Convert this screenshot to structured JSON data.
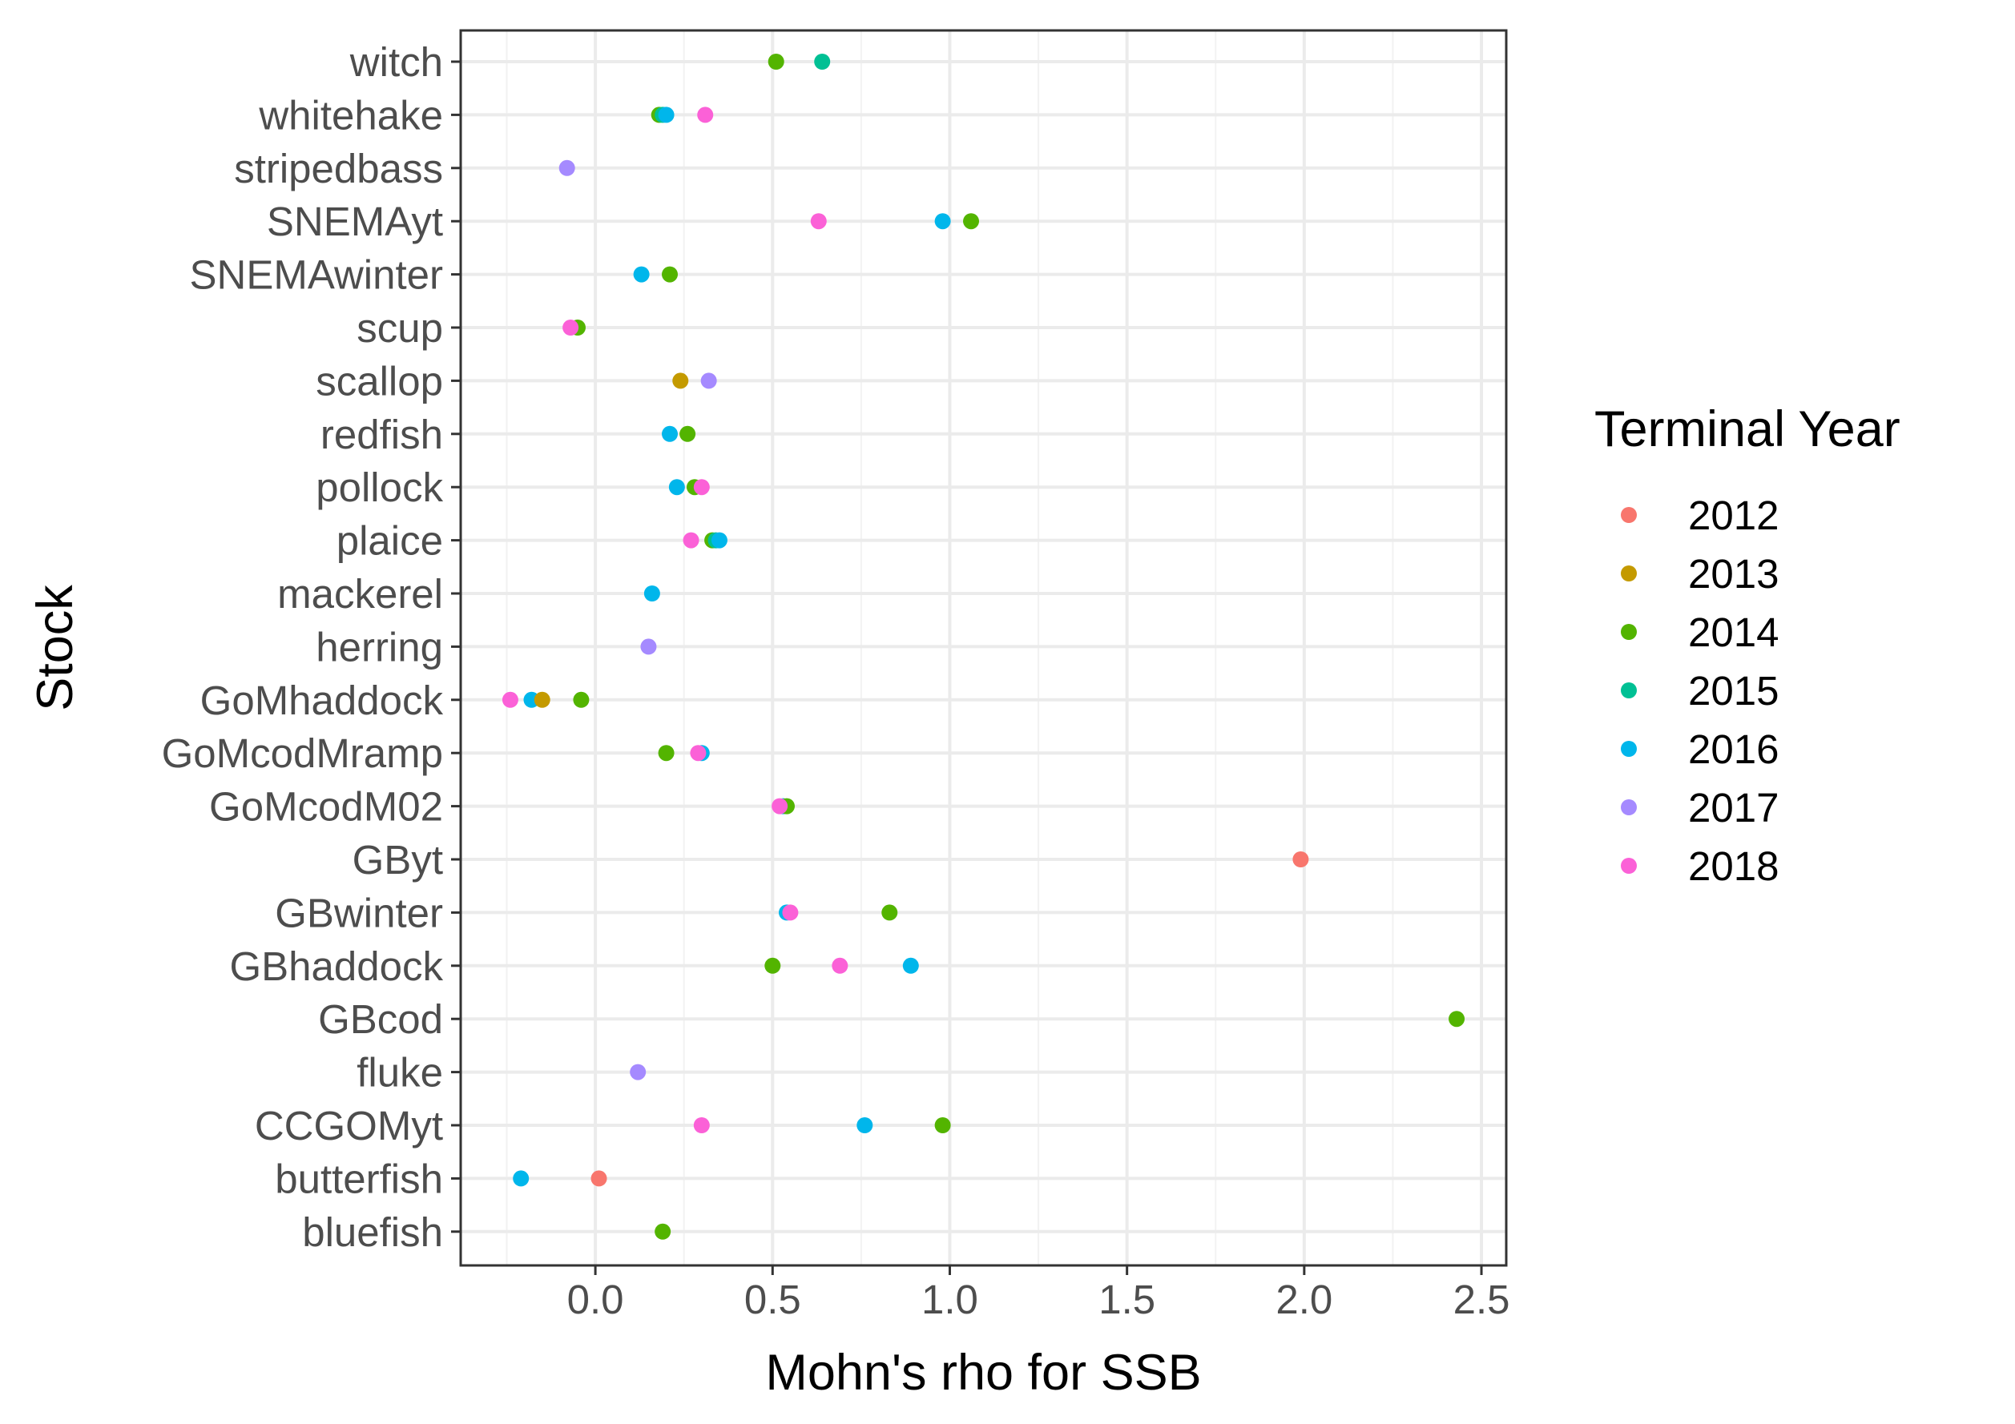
{
  "chart_data": {
    "type": "scatter",
    "xlabel": "Mohn's rho for SSB",
    "ylabel": "Stock",
    "xlim": [
      -0.38,
      2.57
    ],
    "xticks": [
      "0.0",
      "0.5",
      "1.0",
      "1.5",
      "2.0",
      "2.5"
    ],
    "grid": true,
    "legend": {
      "title": "Terminal Year",
      "position": "right",
      "entries": [
        "2012",
        "2013",
        "2014",
        "2015",
        "2016",
        "2017",
        "2018"
      ]
    },
    "colors": {
      "2012": "#F8766D",
      "2013": "#C49A00",
      "2014": "#53B400",
      "2015": "#00C094",
      "2016": "#00B6EB",
      "2017": "#A58AFF",
      "2018": "#FB61D7"
    },
    "categories": [
      "witch",
      "whitehake",
      "stripedbass",
      "SNEMAyt",
      "SNEMAwinter",
      "scup",
      "scallop",
      "redfish",
      "pollock",
      "plaice",
      "mackerel",
      "herring",
      "GoMhaddock",
      "GoMcodMramp",
      "GoMcodM02",
      "GByt",
      "GBwinter",
      "GBhaddock",
      "GBcod",
      "fluke",
      "CCGOMyt",
      "butterfish",
      "bluefish"
    ],
    "points": [
      {
        "stock": "witch",
        "year": "2014",
        "x": 0.51
      },
      {
        "stock": "witch",
        "year": "2015",
        "x": 0.64
      },
      {
        "stock": "whitehake",
        "year": "2014",
        "x": 0.18
      },
      {
        "stock": "whitehake",
        "year": "2015",
        "x": 0.19
      },
      {
        "stock": "whitehake",
        "year": "2016",
        "x": 0.2
      },
      {
        "stock": "whitehake",
        "year": "2018",
        "x": 0.31
      },
      {
        "stock": "stripedbass",
        "year": "2017",
        "x": -0.08
      },
      {
        "stock": "SNEMAyt",
        "year": "2018",
        "x": 0.63
      },
      {
        "stock": "SNEMAyt",
        "year": "2016",
        "x": 0.98
      },
      {
        "stock": "SNEMAyt",
        "year": "2014",
        "x": 1.06
      },
      {
        "stock": "SNEMAwinter",
        "year": "2016",
        "x": 0.13
      },
      {
        "stock": "SNEMAwinter",
        "year": "2014",
        "x": 0.21
      },
      {
        "stock": "scup",
        "year": "2014",
        "x": -0.05
      },
      {
        "stock": "scup",
        "year": "2018",
        "x": -0.07
      },
      {
        "stock": "scallop",
        "year": "2013",
        "x": 0.24
      },
      {
        "stock": "scallop",
        "year": "2017",
        "x": 0.32
      },
      {
        "stock": "redfish",
        "year": "2016",
        "x": 0.21
      },
      {
        "stock": "redfish",
        "year": "2014",
        "x": 0.26
      },
      {
        "stock": "pollock",
        "year": "2016",
        "x": 0.23
      },
      {
        "stock": "pollock",
        "year": "2014",
        "x": 0.28
      },
      {
        "stock": "pollock",
        "year": "2018",
        "x": 0.3
      },
      {
        "stock": "plaice",
        "year": "2018",
        "x": 0.27
      },
      {
        "stock": "plaice",
        "year": "2014",
        "x": 0.33
      },
      {
        "stock": "plaice",
        "year": "2015",
        "x": 0.34
      },
      {
        "stock": "plaice",
        "year": "2016",
        "x": 0.35
      },
      {
        "stock": "mackerel",
        "year": "2016",
        "x": 0.16
      },
      {
        "stock": "herring",
        "year": "2017",
        "x": 0.15
      },
      {
        "stock": "GoMhaddock",
        "year": "2018",
        "x": -0.24
      },
      {
        "stock": "GoMhaddock",
        "year": "2016",
        "x": -0.18
      },
      {
        "stock": "GoMhaddock",
        "year": "2013",
        "x": -0.15
      },
      {
        "stock": "GoMhaddock",
        "year": "2014",
        "x": -0.04
      },
      {
        "stock": "GoMcodMramp",
        "year": "2014",
        "x": 0.2
      },
      {
        "stock": "GoMcodMramp",
        "year": "2016",
        "x": 0.3
      },
      {
        "stock": "GoMcodMramp",
        "year": "2018",
        "x": 0.29
      },
      {
        "stock": "GoMcodM02",
        "year": "2016",
        "x": 0.53
      },
      {
        "stock": "GoMcodM02",
        "year": "2014",
        "x": 0.54
      },
      {
        "stock": "GoMcodM02",
        "year": "2018",
        "x": 0.52
      },
      {
        "stock": "GByt",
        "year": "2012",
        "x": 1.99
      },
      {
        "stock": "GBwinter",
        "year": "2016",
        "x": 0.54
      },
      {
        "stock": "GBwinter",
        "year": "2018",
        "x": 0.55
      },
      {
        "stock": "GBwinter",
        "year": "2014",
        "x": 0.83
      },
      {
        "stock": "GBhaddock",
        "year": "2014",
        "x": 0.5
      },
      {
        "stock": "GBhaddock",
        "year": "2018",
        "x": 0.69
      },
      {
        "stock": "GBhaddock",
        "year": "2016",
        "x": 0.89
      },
      {
        "stock": "GBcod",
        "year": "2014",
        "x": 2.43
      },
      {
        "stock": "fluke",
        "year": "2017",
        "x": 0.12
      },
      {
        "stock": "CCGOMyt",
        "year": "2018",
        "x": 0.3
      },
      {
        "stock": "CCGOMyt",
        "year": "2016",
        "x": 0.76
      },
      {
        "stock": "CCGOMyt",
        "year": "2014",
        "x": 0.98
      },
      {
        "stock": "butterfish",
        "year": "2016",
        "x": -0.21
      },
      {
        "stock": "butterfish",
        "year": "2012",
        "x": 0.01
      },
      {
        "stock": "bluefish",
        "year": "2014",
        "x": 0.19
      }
    ]
  }
}
